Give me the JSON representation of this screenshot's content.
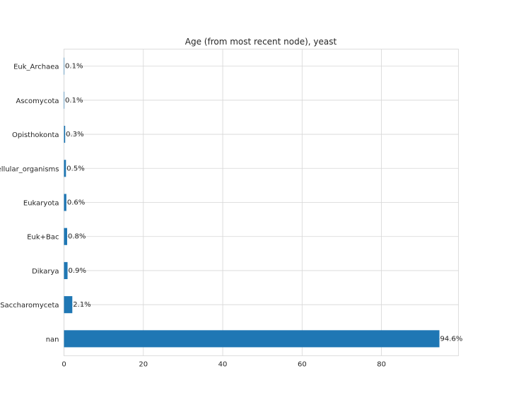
{
  "chart_data": {
    "type": "bar",
    "orientation": "horizontal",
    "title": "Age (from most recent node), yeast",
    "xlabel": "",
    "ylabel": "",
    "categories": [
      "nan",
      "Saccharomyceta",
      "Dikarya",
      "Euk+Bac",
      "Eukaryota",
      "cellular_organisms",
      "Opisthokonta",
      "Ascomycota",
      "Euk_Archaea"
    ],
    "values": [
      94.6,
      2.1,
      0.9,
      0.8,
      0.6,
      0.5,
      0.3,
      0.1,
      0.1
    ],
    "data_labels": [
      "94.6%",
      "2.1%",
      "0.9%",
      "0.8%",
      "0.6%",
      "0.5%",
      "0.3%",
      "0.1%",
      "0.1%"
    ],
    "xlim": [
      0,
      99.4
    ],
    "xticks": [
      0,
      20,
      40,
      60,
      80
    ],
    "grid": true,
    "color": "#1f77b4"
  }
}
